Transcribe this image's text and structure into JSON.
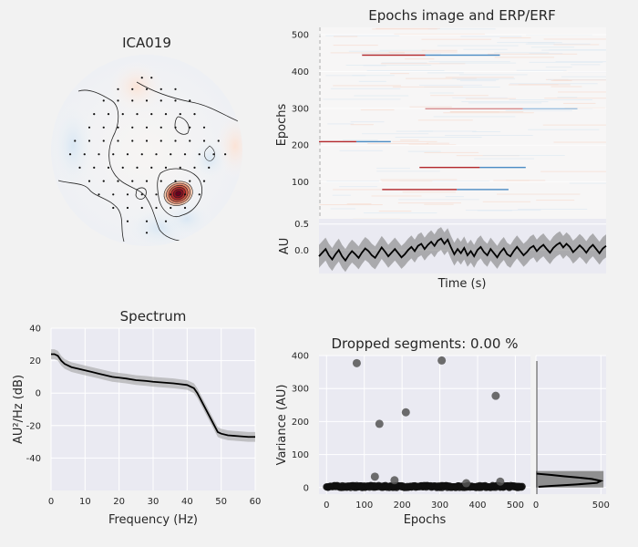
{
  "chart_data": [
    {
      "type": "topomap",
      "title": "ICA019",
      "sensor_rows": [
        {
          "y": -0.76,
          "xs": [
            -0.05,
            0.05
          ]
        },
        {
          "y": -0.64,
          "xs": [
            -0.3,
            -0.15,
            0,
            0.15,
            0.3
          ]
        },
        {
          "y": -0.52,
          "xs": [
            -0.45,
            -0.3,
            -0.15,
            0,
            0.15,
            0.3,
            0.45
          ]
        },
        {
          "y": -0.38,
          "xs": [
            -0.55,
            -0.4,
            -0.25,
            -0.1,
            0.05,
            0.2,
            0.35,
            0.5
          ]
        },
        {
          "y": -0.24,
          "xs": [
            -0.6,
            -0.45,
            -0.3,
            -0.15,
            0,
            0.15,
            0.3,
            0.45,
            0.6
          ]
        },
        {
          "y": -0.1,
          "xs": [
            -0.75,
            -0.6,
            -0.45,
            -0.3,
            -0.15,
            0,
            0.15,
            0.3,
            0.45,
            0.6,
            0.75
          ]
        },
        {
          "y": 0.04,
          "xs": [
            -0.8,
            -0.65,
            -0.5,
            -0.35,
            -0.2,
            -0.05,
            0.1,
            0.25,
            0.4,
            0.55,
            0.7,
            0.82
          ]
        },
        {
          "y": 0.18,
          "xs": [
            -0.7,
            -0.55,
            -0.4,
            -0.25,
            -0.1,
            0.05,
            0.2,
            0.35,
            0.5,
            0.65
          ]
        },
        {
          "y": 0.32,
          "xs": [
            -0.6,
            -0.45,
            -0.3,
            -0.15,
            0,
            0.15,
            0.3,
            0.45,
            0.6
          ]
        },
        {
          "y": 0.46,
          "xs": [
            -0.5,
            -0.35,
            -0.2,
            -0.05,
            0.1,
            0.25,
            0.4,
            0.55
          ]
        },
        {
          "y": 0.6,
          "xs": [
            -0.35,
            -0.2,
            -0.05,
            0.1,
            0.25,
            0.4
          ]
        },
        {
          "y": 0.74,
          "xs": [
            -0.2,
            0,
            0.2
          ]
        },
        {
          "y": 0.86,
          "xs": [
            0
          ]
        }
      ],
      "peak": {
        "x": 0.33,
        "y": 0.45
      }
    },
    {
      "type": "heatmap",
      "title": "Epochs image and ERP/ERF",
      "ylabel": "Epochs",
      "yticks": [
        100,
        200,
        300,
        400,
        500
      ],
      "ylim": [
        0,
        520
      ],
      "events": [
        {
          "epoch": 445,
          "t0": 0.15,
          "t1": 0.37,
          "t2": 0.63
        },
        {
          "epoch": 300,
          "t0": 0.37,
          "t1": 0.71,
          "t2": 0.9
        },
        {
          "epoch": 210,
          "t0": 0.0,
          "t1": 0.13,
          "t2": 0.25
        },
        {
          "epoch": 140,
          "t0": 0.35,
          "t1": 0.56,
          "t2": 0.72
        },
        {
          "epoch": 80,
          "t0": 0.22,
          "t1": 0.48,
          "t2": 0.66
        }
      ]
    },
    {
      "type": "line",
      "ylabel": "AU",
      "xlabel": "Time (s)",
      "yticks": [
        0.0,
        0.5
      ],
      "ylim": [
        -0.45,
        0.6
      ],
      "band": 0.22,
      "mean": [
        -0.12,
        -0.05,
        0.02,
        -0.1,
        -0.18,
        -0.08,
        0.0,
        -0.12,
        -0.2,
        -0.1,
        -0.02,
        -0.08,
        -0.15,
        -0.05,
        0.03,
        -0.02,
        -0.1,
        -0.15,
        -0.05,
        0.05,
        -0.03,
        -0.12,
        -0.05,
        0.02,
        -0.06,
        -0.14,
        -0.08,
        0.0,
        0.06,
        -0.02,
        0.08,
        0.12,
        0.02,
        0.1,
        0.16,
        0.08,
        0.18,
        0.22,
        0.12,
        0.2,
        0.05,
        -0.08,
        0.02,
        -0.06,
        0.04,
        -0.1,
        -0.02,
        -0.12,
        0.0,
        0.06,
        -0.04,
        -0.1,
        0.02,
        -0.06,
        -0.14,
        -0.04,
        0.03,
        -0.08,
        -0.12,
        -0.02,
        0.06,
        -0.02,
        -0.1,
        -0.04,
        0.04,
        0.08,
        -0.02,
        0.05,
        0.1,
        0.02,
        -0.05,
        0.04,
        0.1,
        0.14,
        0.05,
        0.12,
        0.06,
        -0.04,
        0.02,
        0.09,
        0.03,
        -0.05,
        0.04,
        0.1,
        0.02,
        -0.06,
        0.03,
        0.08
      ]
    },
    {
      "type": "line",
      "title": "Spectrum",
      "xlabel": "Frequency (Hz)",
      "ylabel": "AU²/Hz (dB)",
      "xlim": [
        0,
        60
      ],
      "ylim": [
        -60,
        40
      ],
      "xticks": [
        0,
        10,
        20,
        30,
        40,
        50,
        60
      ],
      "yticks": [
        -40,
        -20,
        0,
        20,
        40
      ],
      "x": [
        0,
        1,
        2,
        3,
        4,
        6,
        8,
        10,
        12,
        14,
        16,
        18,
        20,
        22,
        25,
        28,
        30,
        33,
        36,
        38,
        40,
        42,
        43,
        44,
        45,
        46,
        47,
        48,
        49,
        50,
        52,
        55,
        58,
        60
      ],
      "values": [
        24,
        24,
        23,
        20,
        18,
        16,
        15,
        14,
        13,
        12,
        11,
        10,
        9.5,
        9,
        8,
        7.5,
        7,
        6.5,
        6,
        5.5,
        5,
        3,
        0,
        -4,
        -8,
        -12,
        -16,
        -20,
        -24,
        -25,
        -26,
        -26.5,
        -27,
        -27
      ],
      "band": 3
    },
    {
      "type": "scatter",
      "title": "Dropped segments: 0.00 %",
      "xlabel": "Epochs",
      "ylabel": "Variance (AU)",
      "xlim": [
        -20,
        540
      ],
      "ylim": [
        -20,
        400
      ],
      "xticks": [
        0,
        100,
        200,
        300,
        400,
        500
      ],
      "yticks": [
        0,
        100,
        200,
        300,
        400
      ],
      "outliers": [
        {
          "x": 80,
          "y": 377
        },
        {
          "x": 128,
          "y": 33
        },
        {
          "x": 140,
          "y": 193
        },
        {
          "x": 180,
          "y": 22
        },
        {
          "x": 210,
          "y": 228
        },
        {
          "x": 305,
          "y": 385
        },
        {
          "x": 370,
          "y": 13
        },
        {
          "x": 448,
          "y": 278
        },
        {
          "x": 460,
          "y": 18
        }
      ],
      "baseline": {
        "n": 520,
        "y": 3
      }
    },
    {
      "type": "histogram",
      "xticks": [
        0,
        500
      ],
      "xlim": [
        0,
        540
      ],
      "ylim": [
        -20,
        400
      ]
    }
  ]
}
